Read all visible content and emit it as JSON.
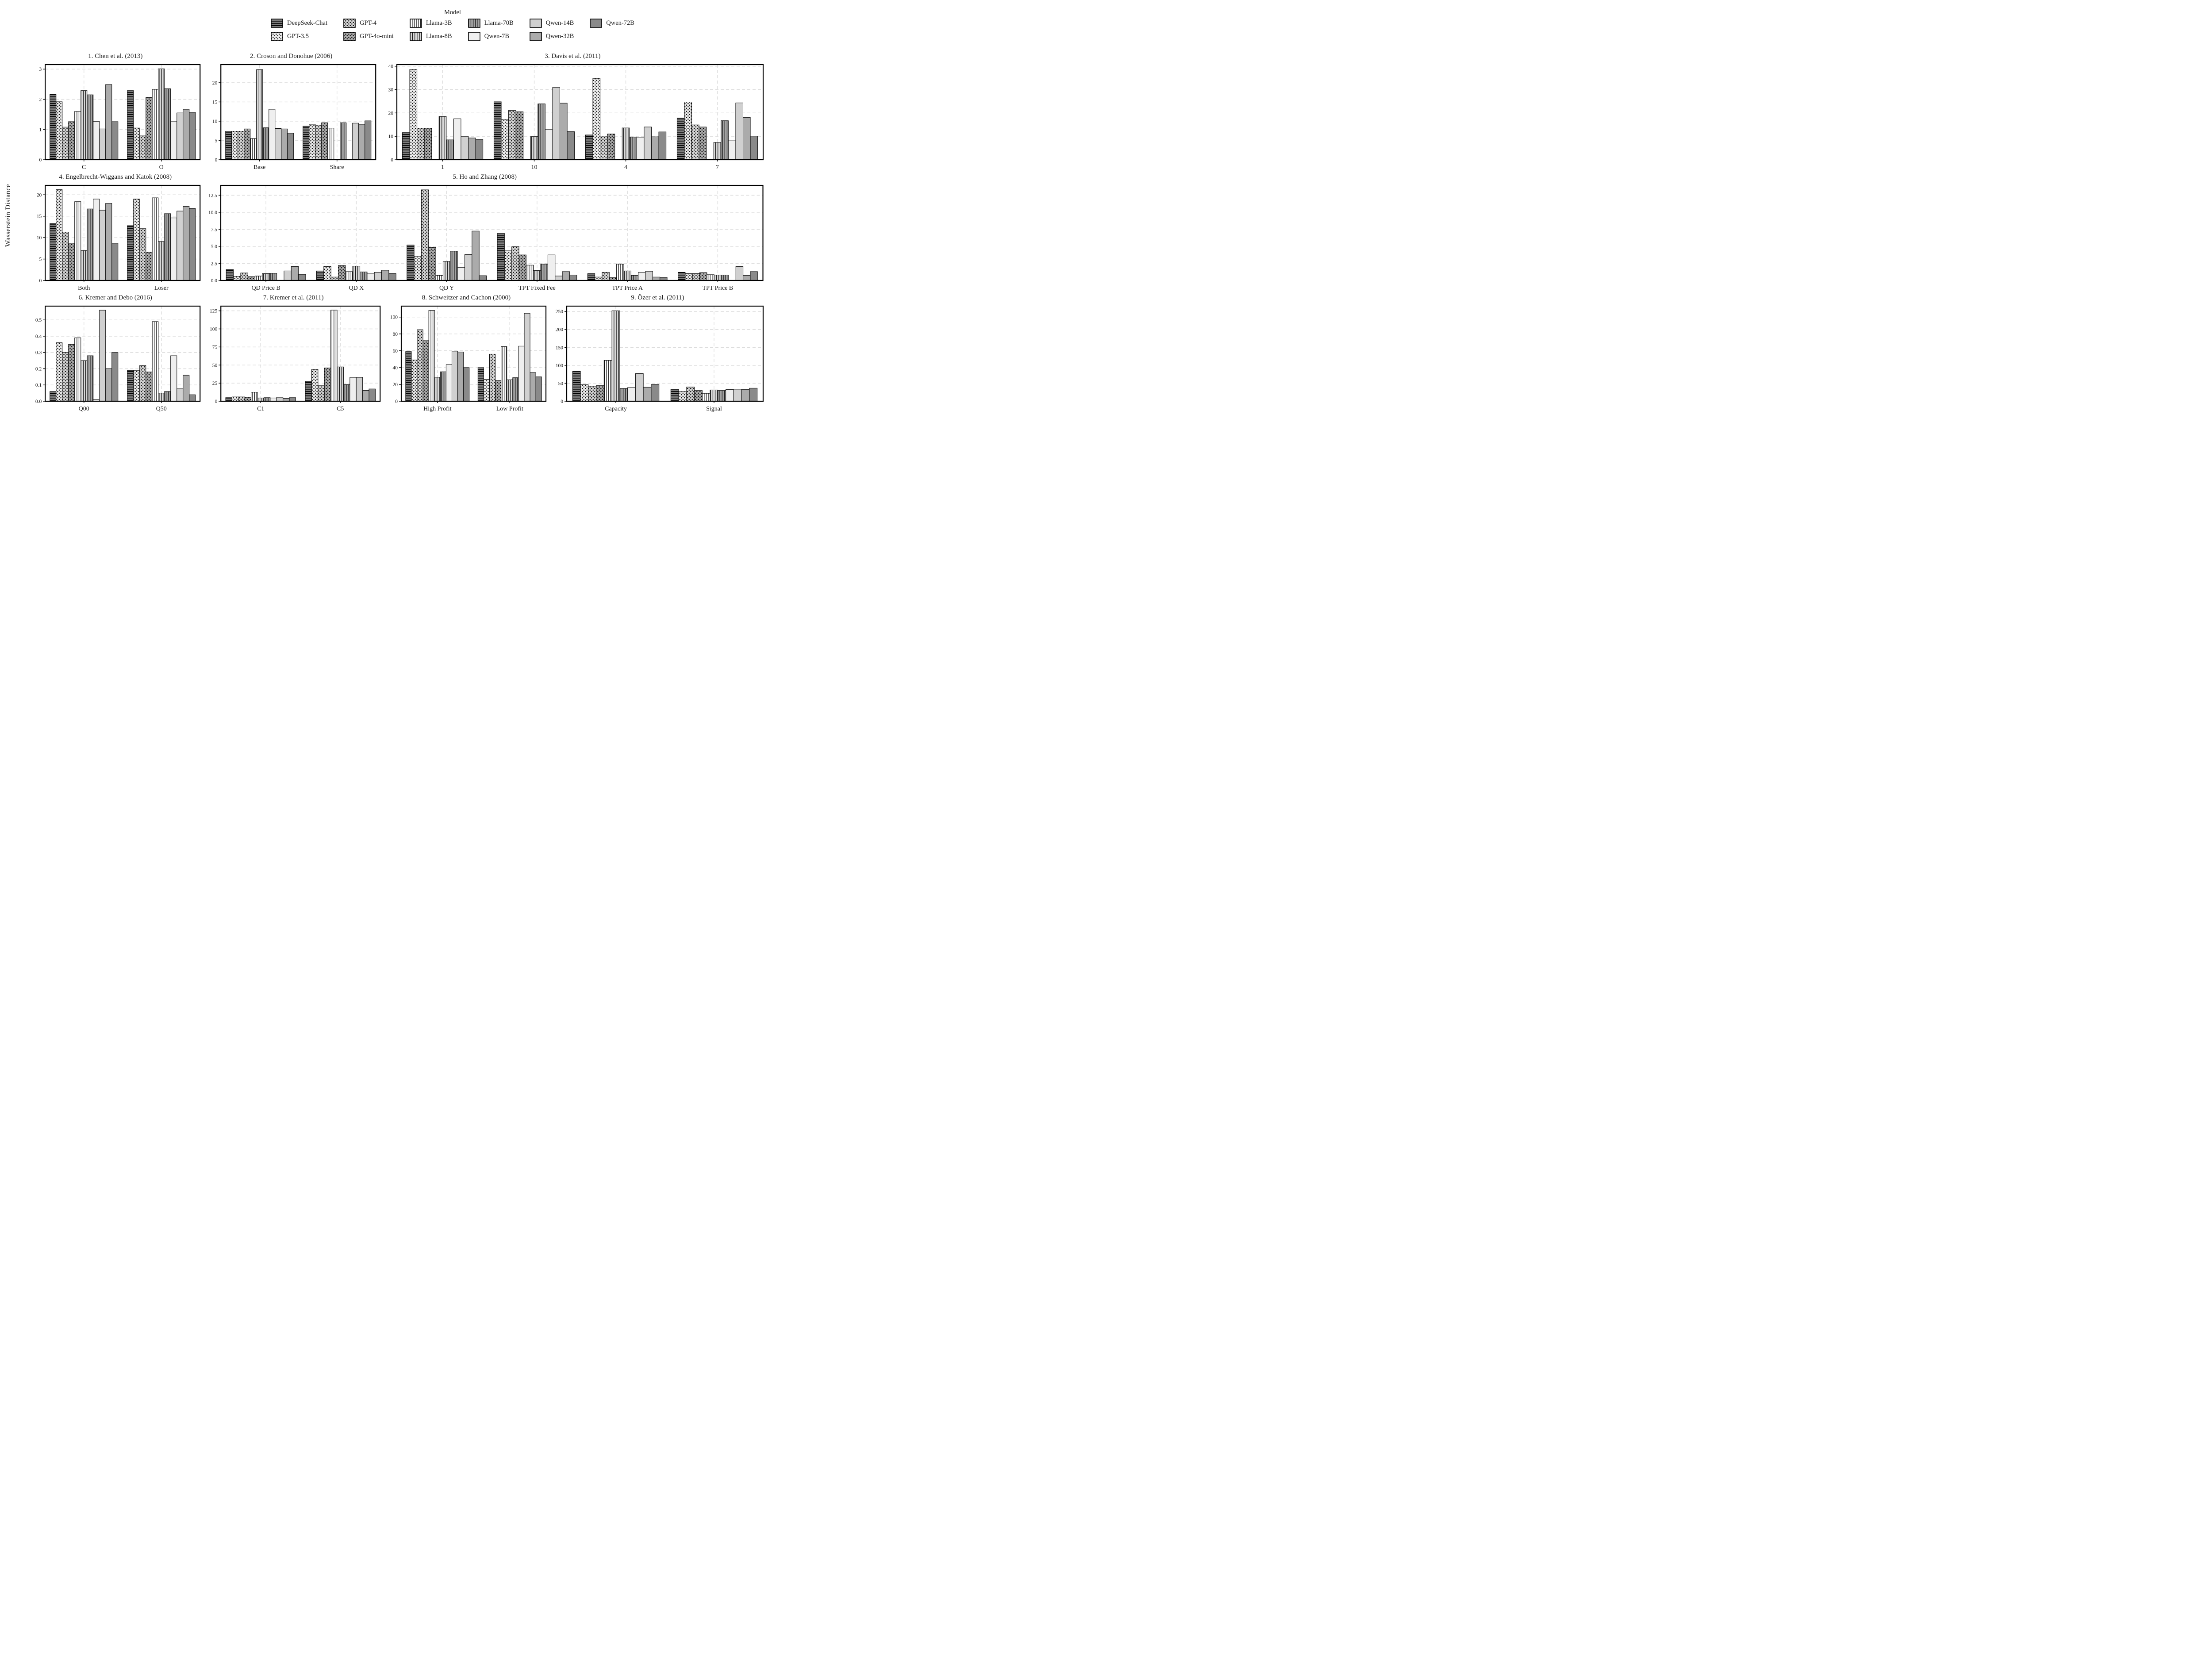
{
  "figure": {
    "ylabel": "Wasserstein Distance",
    "background": "#ffffff",
    "axis_color": "#000000",
    "grid_color": "#dcdcdc",
    "text_color": "#1a1a1a"
  },
  "legend": {
    "title": "Model",
    "rows": 2,
    "columns": 6
  },
  "models": [
    {
      "name": "DeepSeek-Chat",
      "fill": "#7f7f7f",
      "hatch": "horizontal"
    },
    {
      "name": "GPT-3.5",
      "fill": "#ececec",
      "hatch": "dots"
    },
    {
      "name": "GPT-4",
      "fill": "#d3d3d3",
      "hatch": "dots"
    },
    {
      "name": "GPT-4o-mini",
      "fill": "#a9a9a9",
      "hatch": "dots"
    },
    {
      "name": "Llama-3B",
      "fill": "#ffffff",
      "hatch": "vertical"
    },
    {
      "name": "Llama-8B",
      "fill": "#d9d9d9",
      "hatch": "vertical"
    },
    {
      "name": "Llama-70B",
      "fill": "#a3a3a3",
      "hatch": "vertical"
    },
    {
      "name": "Qwen-7B",
      "fill": "#efefef",
      "hatch": "none"
    },
    {
      "name": "Qwen-14B",
      "fill": "#d0d0d0",
      "hatch": "none"
    },
    {
      "name": "Qwen-32B",
      "fill": "#ababab",
      "hatch": "none"
    },
    {
      "name": "Qwen-72B",
      "fill": "#8a8a8a",
      "hatch": "none"
    }
  ],
  "chart_data": [
    {
      "id": "chen-2013",
      "type": "bar",
      "row": 1,
      "flex": 23.8,
      "title": "1. Chen et al. (2013)",
      "categories": [
        "C",
        "O"
      ],
      "ytick_vals": [
        0,
        1,
        2,
        3
      ],
      "ytick_labels": [
        "0",
        "1",
        "2",
        "3"
      ],
      "ylim": [
        0,
        3.15
      ],
      "grid": true,
      "legend_position": "figure-top",
      "values": [
        [
          2.17,
          1.92,
          1.08,
          1.26,
          1.6,
          2.29,
          2.15,
          1.27,
          1.02,
          2.49,
          1.26
        ],
        [
          2.29,
          1.05,
          0.79,
          2.06,
          2.33,
          3.01,
          2.35,
          1.26,
          1.55,
          1.67,
          1.57
        ]
      ]
    },
    {
      "id": "croson-donohue-2006",
      "type": "bar",
      "row": 1,
      "flex": 23.8,
      "title": "2. Croson and Donohue (2006)",
      "categories": [
        "Base",
        "Share"
      ],
      "ytick_vals": [
        0,
        5,
        10,
        15,
        20
      ],
      "ytick_labels": [
        "0",
        "5",
        "10",
        "15",
        "20"
      ],
      "ylim": [
        0,
        24.7
      ],
      "grid": true,
      "values": [
        [
          7.4,
          7.4,
          7.4,
          8.0,
          5.5,
          23.4,
          8.3,
          13.1,
          8.1,
          8.0,
          6.9
        ],
        [
          8.7,
          9.2,
          9.0,
          9.6,
          8.2,
          0,
          9.6,
          0,
          9.5,
          9.2,
          10.1
        ]
      ]
    },
    {
      "id": "davis-2011",
      "type": "bar",
      "row": 1,
      "flex": 52.4,
      "title": "3. Davis et al. (2011)",
      "categories": [
        "1",
        "10",
        "4",
        "7"
      ],
      "ytick_vals": [
        0,
        10,
        20,
        30,
        40
      ],
      "ytick_labels": [
        "0",
        "10",
        "20",
        "30",
        "40"
      ],
      "ylim": [
        0,
        40.7
      ],
      "grid": true,
      "values": [
        [
          11.6,
          38.6,
          13.5,
          13.5,
          0,
          18.5,
          8.5,
          17.5,
          10.0,
          9.3,
          8.7
        ],
        [
          24.8,
          17.3,
          21.1,
          20.5,
          0,
          9.9,
          23.9,
          12.9,
          30.9,
          24.2,
          12.0
        ],
        [
          10.6,
          34.8,
          10.1,
          11.0,
          0,
          13.6,
          9.7,
          9.4,
          14.0,
          9.8,
          11.9
        ],
        [
          17.8,
          24.7,
          14.9,
          14.0,
          0,
          7.4,
          16.7,
          8.1,
          24.3,
          18.1,
          10.1
        ]
      ]
    },
    {
      "id": "engelbrecht-wiggans-katok-2008",
      "type": "bar",
      "row": 2,
      "flex": 23.8,
      "title": "4. Engelbrecht-Wiggans and Katok (2008)",
      "categories": [
        "Both",
        "Loser"
      ],
      "ytick_vals": [
        0,
        5,
        10,
        15,
        20
      ],
      "ytick_labels": [
        "0",
        "5",
        "10",
        "15",
        "20"
      ],
      "ylim": [
        0,
        22.2
      ],
      "grid": true,
      "values": [
        [
          13.3,
          21.2,
          11.3,
          8.7,
          18.4,
          7.0,
          16.7,
          19.0,
          16.4,
          18.0,
          8.7
        ],
        [
          12.8,
          19.0,
          12.1,
          6.6,
          19.3,
          9.1,
          15.6,
          14.6,
          16.2,
          17.3,
          16.8
        ]
      ]
    },
    {
      "id": "ho-zhang-2008",
      "type": "bar",
      "row": 2,
      "flex": 76.2,
      "title": "5. Ho and Zhang (2008)",
      "categories": [
        "QD Price B",
        "QD X",
        "QD Y",
        "TPT Fixed Fee",
        "TPT Price A",
        "TPT Price B"
      ],
      "ytick_vals": [
        0,
        2.5,
        5,
        7.5,
        10,
        12.5
      ],
      "ytick_labels": [
        "0.0",
        "2.5",
        "5.0",
        "7.5",
        "10.0",
        "12.5"
      ],
      "ylim": [
        0,
        13.95
      ],
      "grid": true,
      "values": [
        [
          1.6,
          0.6,
          1.1,
          0.55,
          0.65,
          1.0,
          1.05,
          0,
          1.4,
          2.05,
          0.9
        ],
        [
          1.4,
          2.05,
          0.5,
          2.2,
          1.3,
          2.1,
          1.25,
          1.05,
          1.2,
          1.5,
          1.0
        ],
        [
          5.2,
          3.5,
          13.3,
          4.85,
          0.75,
          2.8,
          4.3,
          1.9,
          3.8,
          7.25,
          0.7
        ],
        [
          6.9,
          4.35,
          4.95,
          3.75,
          2.25,
          1.45,
          2.4,
          3.75,
          0.65,
          1.3,
          0.8
        ],
        [
          1.0,
          0.5,
          1.2,
          0.45,
          2.4,
          1.4,
          0.75,
          1.2,
          1.35,
          0.5,
          0.45
        ],
        [
          1.2,
          1.0,
          1.0,
          1.15,
          0.85,
          0.8,
          0.8,
          0,
          2.05,
          0.75,
          1.3
        ]
      ]
    },
    {
      "id": "kremer-debo-2016",
      "type": "bar",
      "row": 3,
      "flex": 23.8,
      "title": "6. Kremer and Debo (2016)",
      "categories": [
        "Q00",
        "Q50"
      ],
      "ytick_vals": [
        0,
        0.1,
        0.2,
        0.3,
        0.4,
        0.5
      ],
      "ytick_labels": [
        "0.0",
        "0.1",
        "0.2",
        "0.3",
        "0.4",
        "0.5"
      ],
      "ylim": [
        0,
        0.585
      ],
      "grid": true,
      "values": [
        [
          0.06,
          0.36,
          0.3,
          0.35,
          0.39,
          0.25,
          0.28,
          0.01,
          0.56,
          0.2,
          0.3
        ],
        [
          0.19,
          0.19,
          0.22,
          0.18,
          0.49,
          0.05,
          0.06,
          0.28,
          0.08,
          0.16,
          0.04
        ]
      ]
    },
    {
      "id": "kremer-2011",
      "type": "bar",
      "row": 3,
      "flex": 24.4,
      "title": "7. Kremer et al. (2011)",
      "categories": [
        "C1",
        "C5"
      ],
      "ytick_vals": [
        0,
        25,
        50,
        75,
        100,
        125
      ],
      "ytick_labels": [
        "0",
        "25",
        "50",
        "75",
        "100",
        "125"
      ],
      "ylim": [
        0,
        131.5
      ],
      "grid": true,
      "values": [
        [
          5,
          6,
          6,
          5.5,
          12.5,
          4.5,
          5,
          4.5,
          5.5,
          4,
          5
        ],
        [
          27.5,
          44,
          21.5,
          46,
          126,
          47.5,
          23,
          33,
          33,
          15,
          17
        ]
      ]
    },
    {
      "id": "schweitzer-cachon-2000",
      "type": "bar",
      "row": 3,
      "flex": 22.4,
      "title": "8. Schweitzer and Cachon (2000)",
      "categories": [
        "High Profit",
        "Low Profit"
      ],
      "ytick_vals": [
        0,
        20,
        40,
        60,
        80,
        100
      ],
      "ytick_labels": [
        "0",
        "20",
        "40",
        "60",
        "80",
        "100"
      ],
      "ylim": [
        0,
        113
      ],
      "grid": true,
      "values": [
        [
          59,
          49,
          85,
          72,
          108,
          28.5,
          35,
          43.5,
          59.5,
          58.5,
          40
        ],
        [
          40,
          26,
          56,
          24.5,
          65,
          25.5,
          28,
          65.5,
          104.5,
          34,
          29
        ]
      ]
    },
    {
      "id": "ozer-2011",
      "type": "bar",
      "row": 3,
      "flex": 29.4,
      "title": "9. Özer et al. (2011)",
      "categories": [
        "Capacity",
        "Signal"
      ],
      "ytick_vals": [
        0,
        50,
        100,
        150,
        200,
        250
      ],
      "ytick_labels": [
        "0",
        "50",
        "100",
        "150",
        "200",
        "250"
      ],
      "ylim": [
        0,
        265
      ],
      "grid": true,
      "values": [
        [
          83.5,
          46,
          42,
          43.5,
          114,
          252,
          35.5,
          38,
          77,
          39,
          46.5
        ],
        [
          33.5,
          27,
          39.5,
          30,
          22,
          31.5,
          30,
          32.5,
          32,
          33,
          36.5
        ]
      ]
    }
  ]
}
